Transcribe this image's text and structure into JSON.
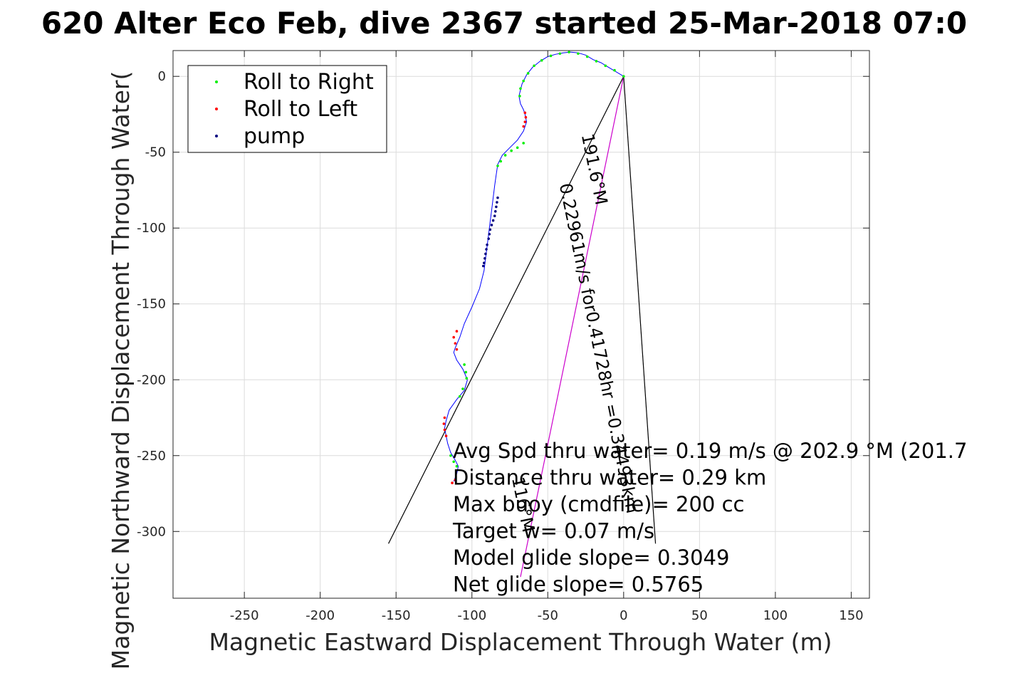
{
  "chart_data": {
    "type": "line",
    "title": "620 Alter Eco Feb, dive 2367 started 25-Mar-2018 07:0",
    "xlabel": "Magnetic Eastward Displacement Through Water (m)",
    "ylabel": "Magnetic Northward Displacement Through Water(",
    "xlim": [
      -297,
      162
    ],
    "ylim": [
      -344,
      17
    ],
    "xticks": [
      -250,
      -200,
      -150,
      -100,
      -50,
      0,
      50,
      100,
      150
    ],
    "yticks": [
      0,
      -50,
      -100,
      -150,
      -200,
      -250,
      -300
    ],
    "grid": true,
    "legend_position": "top-left",
    "colors": {
      "track": "#0000ff",
      "roll_right": "#00ee00",
      "roll_left": "#ff0000",
      "pump": "#000080",
      "vector": "#000000",
      "magenta_line": "#cc00cc"
    },
    "legend": [
      "Roll to Right",
      "Roll to Left",
      "pump"
    ],
    "track": {
      "x": [
        0,
        -5,
        -10,
        -15,
        -20,
        -25,
        -30,
        -35,
        -40,
        -45,
        -50,
        -55,
        -60,
        -64,
        -67,
        -69,
        -68,
        -66,
        -65,
        -64,
        -66,
        -70,
        -75,
        -80,
        -83,
        -84,
        -85,
        -86,
        -87,
        -88,
        -89,
        -90,
        -91,
        -92,
        -95,
        -100,
        -105,
        -108,
        -111,
        -112,
        -110,
        -106,
        -103,
        -105,
        -110,
        -115,
        -117,
        -118,
        -117,
        -116,
        -114,
        -111,
        -109,
        -110,
        -112
      ],
      "y": [
        0,
        3,
        6,
        9,
        11,
        14,
        15.5,
        16,
        15.5,
        14.5,
        13,
        10,
        6,
        1,
        -5,
        -13,
        -18,
        -22,
        -25,
        -30,
        -36,
        -42,
        -47,
        -52,
        -58,
        -65,
        -72,
        -80,
        -88,
        -96,
        -104,
        -112,
        -120,
        -128,
        -140,
        -152,
        -163,
        -172,
        -179,
        -182,
        -187,
        -193,
        -200,
        -207,
        -213,
        -220,
        -227,
        -232,
        -237,
        -242,
        -248,
        -253,
        -257,
        -262,
        -267
      ]
    },
    "roll_right_points": [
      [
        0,
        0
      ],
      [
        -6,
        4
      ],
      [
        -12,
        7
      ],
      [
        -18,
        10
      ],
      [
        -24,
        13
      ],
      [
        -30,
        15
      ],
      [
        -36,
        16
      ],
      [
        -42,
        15
      ],
      [
        -48,
        13.5
      ],
      [
        -54,
        10.5
      ],
      [
        -59,
        7
      ],
      [
        -63,
        2
      ],
      [
        -66,
        -3
      ],
      [
        -68,
        -8
      ],
      [
        -68.5,
        -13
      ],
      [
        -66,
        -44
      ],
      [
        -70,
        -47
      ],
      [
        -74,
        -49
      ],
      [
        -78,
        -52
      ],
      [
        -81,
        -56
      ],
      [
        -83,
        -59
      ],
      [
        -105,
        -190
      ],
      [
        -104,
        -195
      ],
      [
        -103.5,
        -199
      ],
      [
        -106,
        -206
      ],
      [
        -108,
        -211
      ],
      [
        -114,
        -250
      ],
      [
        -112,
        -254
      ],
      [
        -110,
        -257
      ]
    ],
    "roll_left_points": [
      [
        -65,
        -24
      ],
      [
        -64.5,
        -27
      ],
      [
        -65,
        -30
      ],
      [
        -66,
        -33
      ],
      [
        -110,
        -168
      ],
      [
        -112,
        -172
      ],
      [
        -111,
        -176
      ],
      [
        -110,
        -180
      ],
      [
        -118,
        -225
      ],
      [
        -118.5,
        -229
      ],
      [
        -118,
        -233
      ],
      [
        -117,
        -237
      ],
      [
        -111,
        -266
      ],
      [
        -113,
        -268
      ]
    ],
    "pump_points": [
      [
        -83,
        -80
      ],
      [
        -83.5,
        -83
      ],
      [
        -84,
        -86
      ],
      [
        -84.5,
        -89
      ],
      [
        -85,
        -92
      ],
      [
        -86,
        -95
      ],
      [
        -87,
        -98
      ],
      [
        -88,
        -101
      ],
      [
        -88.5,
        -104
      ],
      [
        -89,
        -107
      ],
      [
        -90,
        -111
      ],
      [
        -90.5,
        -114
      ],
      [
        -91,
        -117
      ],
      [
        -91.5,
        -120
      ],
      [
        -92,
        -123
      ],
      [
        -92.5,
        -125
      ]
    ],
    "vectors": [
      {
        "from": [
          0,
          0
        ],
        "to": [
          -155,
          -308
        ]
      },
      {
        "from": [
          0,
          0
        ],
        "to": [
          -68,
          -330
        ],
        "color": "magenta"
      },
      {
        "from": [
          0,
          0
        ],
        "to": [
          21,
          -308
        ]
      }
    ],
    "vector_labels": [
      {
        "text": "0.22961m/s for0.41728hr =0.34493km",
        "at": [
          -20,
          -180
        ],
        "angle_deg": 78.4
      },
      {
        "text": "191.6°M",
        "at": [
          -23,
          -62
        ],
        "angle_deg": 78.4
      },
      {
        "text": "116°M",
        "at": [
          -70,
          -283
        ],
        "angle_deg": 78.4
      }
    ],
    "annotations": [
      "Avg Spd thru water=  0.19 m/s @ 202.9 °M (201.7",
      "Distance thru water=  0.29 km",
      "Max buoy (cmdfile)= 200 cc",
      "Target w= 0.07 m/s",
      "Model glide slope= 0.3049",
      "Net glide slope= 0.5765"
    ]
  }
}
